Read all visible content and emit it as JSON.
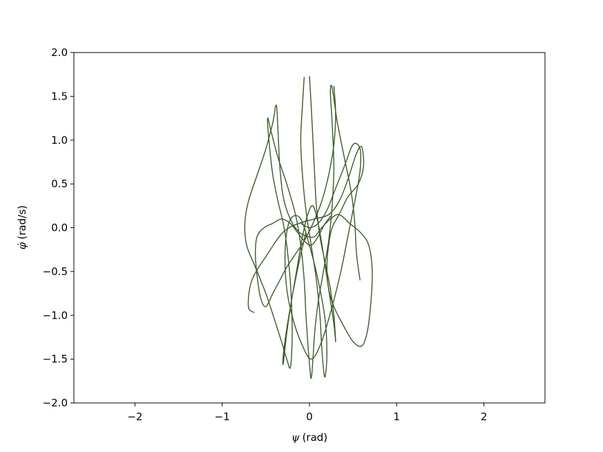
{
  "chart_data": {
    "type": "line",
    "title": "",
    "xlabel_symbol": "ψ",
    "xlabel_unit": "(rad)",
    "ylabel_symbol": "φ̇",
    "ylabel_unit": "(rad/s)",
    "xlim": [
      -2.7,
      2.7
    ],
    "ylim": [
      -2.0,
      2.0
    ],
    "xticks": [
      -2,
      -1,
      0,
      1,
      2
    ],
    "xtick_labels": [
      "−2",
      "−1",
      "0",
      "1",
      "2"
    ],
    "yticks": [
      -2.0,
      -1.5,
      -1.0,
      -0.5,
      0.0,
      0.5,
      1.0,
      1.5,
      2.0
    ],
    "ytick_labels": [
      "−2.0",
      "−1.5",
      "−1.0",
      "−0.5",
      "0.0",
      "0.5",
      "1.0",
      "1.5",
      "2.0"
    ],
    "grid": false,
    "line_color": "#3b5a2a",
    "series": [
      {
        "x": [
          -0.63,
          -0.7,
          -0.66,
          -0.48,
          -0.3,
          -0.12,
          0.06,
          0.22,
          0.34,
          0.44,
          0.54,
          0.6,
          0.62,
          0.56,
          0.44,
          0.34,
          0.26,
          0.22,
          0.2,
          0.22,
          0.28,
          0.38,
          0.5,
          0.6,
          0.66,
          0.7,
          0.72,
          0.68,
          0.58,
          0.46,
          0.34,
          0.24,
          0.14,
          0.06,
          -0.02,
          -0.12,
          -0.22,
          -0.3,
          -0.34,
          -0.36,
          -0.38,
          -0.42,
          -0.5,
          -0.6,
          -0.7,
          -0.74,
          -0.72,
          -0.62,
          -0.5,
          -0.4,
          -0.32,
          -0.26,
          -0.22,
          -0.2,
          -0.2,
          -0.22,
          -0.26,
          -0.3,
          -0.36,
          -0.42,
          -0.46,
          -0.48,
          -0.44,
          -0.36,
          -0.26,
          -0.16,
          -0.1,
          -0.06,
          -0.04,
          -0.02,
          0.0,
          0.02,
          0.04,
          0.06,
          0.1,
          0.16,
          0.22,
          0.26,
          0.28,
          0.26,
          0.24,
          0.26,
          0.32,
          0.4,
          0.48,
          0.52,
          0.54,
          0.58
        ],
        "y": [
          -0.97,
          -0.9,
          -0.6,
          -0.3,
          -0.05,
          0.05,
          0.1,
          0.15,
          0.3,
          0.55,
          0.85,
          0.92,
          0.7,
          0.5,
          0.35,
          0.15,
          0.0,
          -0.2,
          -0.45,
          -0.7,
          -0.9,
          -1.1,
          -1.3,
          -1.35,
          -1.2,
          -0.9,
          -0.5,
          -0.2,
          -0.05,
          0.05,
          0.15,
          0.1,
          0.0,
          -0.1,
          -0.1,
          -0.05,
          0.1,
          0.35,
          0.7,
          1.1,
          1.4,
          1.2,
          0.9,
          0.6,
          0.3,
          0.05,
          -0.2,
          -0.45,
          -0.75,
          -1.05,
          -1.3,
          -1.5,
          -1.6,
          -1.35,
          -1.0,
          -0.6,
          -0.2,
          0.05,
          0.3,
          0.6,
          0.95,
          1.25,
          1.1,
          0.8,
          0.5,
          0.15,
          -0.2,
          -0.6,
          -1.0,
          -1.3,
          -1.55,
          -1.72,
          -1.5,
          -1.2,
          -0.85,
          -0.5,
          -0.15,
          0.25,
          0.7,
          1.2,
          1.55,
          1.6,
          1.2,
          0.8,
          0.4,
          0.05,
          -0.3,
          -0.6
        ]
      },
      {
        "x": [
          -0.06,
          -0.08,
          -0.1,
          -0.08,
          -0.04,
          0.02,
          0.08,
          0.12,
          0.14,
          0.16,
          0.18,
          0.2,
          0.18,
          0.1,
          0.0,
          -0.1,
          -0.2,
          -0.26,
          -0.28,
          -0.26,
          -0.2,
          -0.1,
          0.02,
          0.14,
          0.26,
          0.36,
          0.44,
          0.52,
          0.58,
          0.58,
          0.5,
          0.4,
          0.3,
          0.2,
          0.1,
          0.0,
          -0.1
        ],
        "y": [
          1.72,
          1.4,
          1.0,
          0.6,
          0.2,
          -0.2,
          -0.6,
          -1.0,
          -1.35,
          -1.6,
          -1.7,
          -1.45,
          -1.05,
          -0.6,
          -0.2,
          0.1,
          0.12,
          -0.05,
          -0.35,
          -0.7,
          -1.0,
          -1.3,
          -1.5,
          -1.3,
          -0.9,
          -0.5,
          -0.1,
          0.3,
          0.65,
          0.9,
          0.95,
          0.7,
          0.45,
          0.2,
          0.05,
          0.0,
          0.05
        ]
      },
      {
        "x": [
          0.0,
          0.02,
          0.04,
          0.06,
          0.08,
          0.12,
          0.18,
          0.24,
          0.28,
          0.3,
          0.28,
          0.22,
          0.16,
          0.1,
          0.04,
          -0.02,
          -0.08,
          -0.14,
          -0.2,
          -0.26,
          -0.3,
          -0.3,
          -0.26,
          -0.2,
          -0.12,
          -0.04
        ],
        "y": [
          1.73,
          1.4,
          1.0,
          0.6,
          0.25,
          -0.1,
          -0.4,
          -0.7,
          -1.0,
          -1.3,
          -1.1,
          -0.7,
          -0.3,
          0.05,
          0.25,
          0.15,
          -0.1,
          -0.45,
          -0.8,
          -1.15,
          -1.45,
          -1.55,
          -1.2,
          -0.8,
          -0.4,
          -0.05
        ]
      },
      {
        "x": [
          0.28,
          0.3,
          0.28,
          0.22,
          0.14,
          0.04,
          -0.06,
          -0.16,
          -0.26,
          -0.34,
          -0.42,
          -0.5,
          -0.56,
          -0.6,
          -0.62,
          -0.6,
          -0.52,
          -0.42,
          -0.32,
          -0.22,
          -0.14,
          -0.06,
          0.02,
          0.1,
          0.18,
          0.26
        ],
        "y": [
          1.62,
          1.3,
          0.95,
          0.6,
          0.3,
          0.05,
          -0.15,
          -0.3,
          -0.45,
          -0.6,
          -0.75,
          -0.9,
          -0.8,
          -0.55,
          -0.3,
          -0.1,
          0.0,
          0.05,
          0.1,
          0.05,
          -0.05,
          -0.15,
          -0.2,
          -0.1,
          0.05,
          0.15
        ]
      }
    ]
  }
}
